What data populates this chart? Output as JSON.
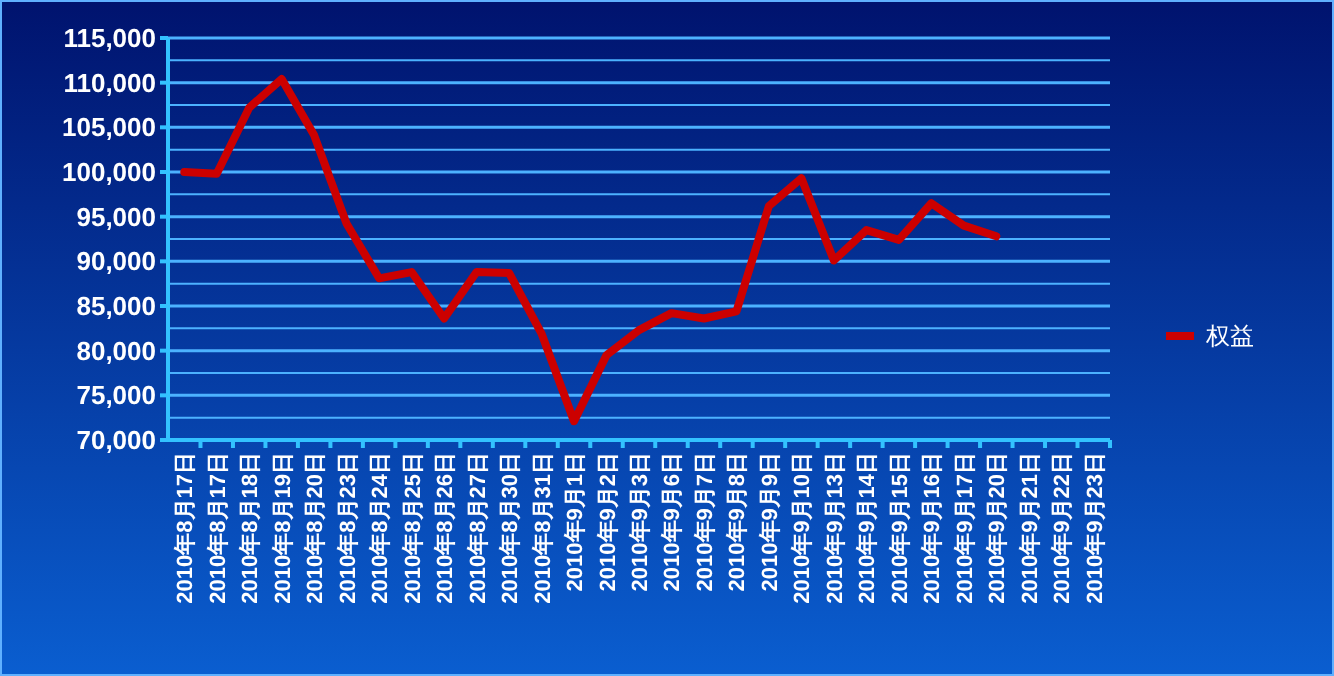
{
  "chart_data": {
    "type": "line",
    "categories": [
      "2010年8月17日",
      "2010年8月17日",
      "2010年8月18日",
      "2010年8月19日",
      "2010年8月20日",
      "2010年8月23日",
      "2010年8月24日",
      "2010年8月25日",
      "2010年8月26日",
      "2010年8月27日",
      "2010年8月30日",
      "2010年8月31日",
      "2010年9月1日",
      "2010年9月2日",
      "2010年9月3日",
      "2010年9月6日",
      "2010年9月7日",
      "2010年9月8日",
      "2010年9月9日",
      "2010年9月10日",
      "2010年9月13日",
      "2010年9月14日",
      "2010年9月15日",
      "2010年9月16日",
      "2010年9月17日",
      "2010年9月20日",
      "2010年9月21日",
      "2010年9月22日",
      "2010年9月23日"
    ],
    "series": [
      {
        "name": "权益",
        "color": "#cc0000",
        "values": [
          100000,
          99800,
          107200,
          110400,
          104100,
          94200,
          88100,
          88800,
          83600,
          88800,
          88700,
          81900,
          72100,
          79500,
          82300,
          84200,
          83600,
          84400,
          96200,
          99300,
          90100,
          93500,
          92400,
          96500,
          94000,
          92800,
          null,
          null,
          null
        ]
      }
    ],
    "ylim": [
      70000,
      115000
    ],
    "yticks": [
      {
        "value": 70000,
        "label": "70,000"
      },
      {
        "value": 72500,
        "label": null
      },
      {
        "value": 75000,
        "label": "75,000"
      },
      {
        "value": 77500,
        "label": null
      },
      {
        "value": 80000,
        "label": "80,000"
      },
      {
        "value": 82500,
        "label": null
      },
      {
        "value": 85000,
        "label": "85,000"
      },
      {
        "value": 87500,
        "label": null
      },
      {
        "value": 90000,
        "label": "90,000"
      },
      {
        "value": 92500,
        "label": null
      },
      {
        "value": 95000,
        "label": "95,000"
      },
      {
        "value": 97500,
        "label": null
      },
      {
        "value": 100000,
        "label": "100,000"
      },
      {
        "value": 102500,
        "label": null
      },
      {
        "value": 105000,
        "label": "105,000"
      },
      {
        "value": 107500,
        "label": null
      },
      {
        "value": 110000,
        "label": "110,000"
      },
      {
        "value": 112500,
        "label": null
      },
      {
        "value": 115000,
        "label": "115,000"
      }
    ],
    "grid": true,
    "legend": "right",
    "marker": "none",
    "line_style": "solid"
  }
}
